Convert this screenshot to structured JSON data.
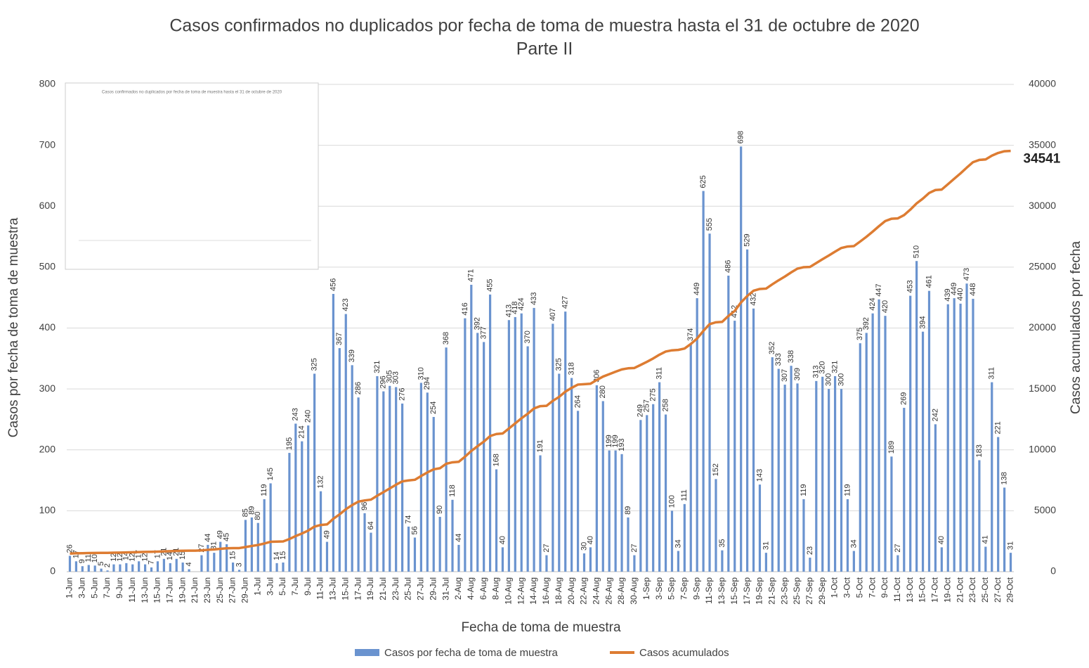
{
  "chart_data": {
    "type": "bar_line",
    "title": "Casos confirmados no duplicados por fecha de toma de muestra hasta el 31 de octubre de 2020",
    "subtitle": "Parte II",
    "x_label": "Fecha de toma de muestra",
    "y_label": "Casos por fecha de toma de muestra",
    "y2_label": "Casos acumulados por fecha",
    "inset_title": "Casos confirmados no duplicados por fecha de toma de muestra hasta el 31 de octubre de 2020",
    "categories": [
      "1-Jun",
      null,
      "3-Jun",
      null,
      "5-Jun",
      null,
      "7-Jun",
      null,
      "9-Jun",
      null,
      "11-Jun",
      null,
      "13-Jun",
      null,
      "15-Jun",
      null,
      "17-Jun",
      null,
      "19-Jun",
      null,
      "21-Jun",
      null,
      "23-Jun",
      null,
      "25-Jun",
      null,
      "27-Jun",
      null,
      "29-Jun",
      null,
      "1-Jul",
      null,
      "3-Jul",
      null,
      "5-Jul",
      null,
      "7-Jul",
      null,
      "9-Jul",
      null,
      "11-Jul",
      null,
      "13-Jul",
      null,
      "15-Jul",
      null,
      "17-Jul",
      null,
      "19-Jul",
      null,
      "21-Jul",
      null,
      "23-Jul",
      null,
      "25-Jul",
      null,
      "27-Jul",
      null,
      "29-Jul",
      null,
      "31-Jul",
      null,
      "2-Aug",
      null,
      "4-Aug",
      null,
      "6-Aug",
      null,
      "8-Aug",
      null,
      "10-Aug",
      null,
      "12-Aug",
      null,
      "14-Aug",
      null,
      "16-Aug",
      null,
      "18-Aug",
      null,
      "20-Aug",
      null,
      "22-Aug",
      null,
      "24-Aug",
      null,
      "26-Aug",
      null,
      "28-Aug",
      null,
      "30-Aug",
      null,
      "1-Sep",
      null,
      "3-Sep",
      null,
      "5-Sep",
      null,
      "7-Sep",
      null,
      "9-Sep",
      null,
      "11-Sep",
      null,
      "13-Sep",
      null,
      "15-Sep",
      null,
      "17-Sep",
      null,
      "19-Sep",
      null,
      "21-Sep",
      null,
      "23-Sep",
      null,
      "25-Sep",
      null,
      "27-Sep",
      null,
      "29-Sep",
      null,
      "1-Oct",
      null,
      "3-Oct",
      null,
      "5-Oct",
      null,
      "7-Oct",
      null,
      "9-Oct",
      null,
      "11-Oct",
      null,
      "13-Oct",
      null,
      "15-Oct",
      null,
      "17-Oct",
      null,
      "19-Oct",
      null,
      "21-Oct",
      null,
      "23-Oct",
      null,
      "25-Oct",
      null,
      "27-Oct",
      null,
      "29-Oct"
    ],
    "series": [
      {
        "name": "Casos por fecha de toma de muestra",
        "color": "#6a93cf",
        "values": [
          26,
          17,
          9,
          11,
          10,
          5,
          2,
          12,
          12,
          14,
          12,
          17,
          12,
          7,
          17,
          21,
          14,
          21,
          15,
          4,
          null,
          27,
          44,
          31,
          49,
          45,
          15,
          3,
          85,
          89,
          80,
          119,
          145,
          14,
          15,
          195,
          243,
          214,
          240,
          325,
          132,
          49,
          456,
          367,
          423,
          339,
          286,
          96,
          64,
          321,
          296,
          305,
          303,
          276,
          74,
          56,
          310,
          294,
          254,
          90,
          368,
          118,
          44,
          416,
          471,
          392,
          377,
          455,
          168,
          40,
          413,
          418,
          424,
          370,
          433,
          191,
          27,
          407,
          325,
          427,
          318,
          264,
          30,
          40,
          306,
          280,
          199,
          199,
          193,
          89,
          27,
          249,
          257,
          275,
          311,
          258,
          100,
          34,
          111,
          374,
          449,
          625,
          555,
          152,
          35,
          486,
          412,
          698,
          529,
          432,
          143,
          31,
          352,
          333,
          307,
          338,
          309,
          119,
          23,
          313,
          320,
          300,
          321,
          300,
          119,
          34,
          375,
          392,
          424,
          447,
          420,
          189,
          27,
          269,
          453,
          510,
          394,
          461,
          242,
          40,
          439,
          449,
          440,
          473,
          448,
          183,
          41,
          311,
          221,
          138,
          31
        ]
      },
      {
        "name": "Casos acumulados",
        "color": "#dd7c32",
        "axis": "y2",
        "values": [
          1490,
          1507,
          1516,
          1527,
          1537,
          1542,
          1544,
          1556,
          1568,
          1582,
          1594,
          1611,
          1623,
          1630,
          1647,
          1668,
          1682,
          1703,
          1718,
          1722,
          1722,
          1749,
          1793,
          1824,
          1873,
          1918,
          1933,
          1936,
          2021,
          2110,
          2190,
          2309,
          2454,
          2468,
          2483,
          2678,
          2921,
          3135,
          3375,
          3700,
          3832,
          3881,
          4337,
          4704,
          5127,
          5466,
          5752,
          5848,
          5912,
          6233,
          6529,
          6834,
          7137,
          7413,
          7487,
          7543,
          7853,
          8147,
          8401,
          8491,
          8859,
          8977,
          9021,
          9437,
          9908,
          10300,
          10677,
          11132,
          11300,
          11340,
          11753,
          12171,
          12595,
          12965,
          13398,
          13589,
          13616,
          14023,
          14348,
          14775,
          15093,
          15357,
          15387,
          15427,
          15733,
          16013,
          16212,
          16411,
          16604,
          16693,
          16720,
          16969,
          17226,
          17501,
          17812,
          18070,
          18170,
          18204,
          18315,
          18689,
          19138,
          19763,
          20318,
          20470,
          20505,
          20991,
          21403,
          22101,
          22630,
          23062,
          23205,
          23236,
          23588,
          23921,
          24228,
          24566,
          24875,
          24994,
          25017,
          25330,
          25650,
          25950,
          26271,
          26571,
          26690,
          26724,
          27099,
          27491,
          27915,
          28362,
          28782,
          28971,
          28998,
          29267,
          29720,
          30230,
          30624,
          31085,
          31327,
          31367,
          31806,
          32255,
          32695,
          33168,
          33616,
          33799,
          33840,
          34151,
          34372,
          34510,
          34541
        ]
      }
    ],
    "ylim": [
      0,
      800
    ],
    "yticks": [
      0,
      100,
      200,
      300,
      400,
      500,
      600,
      700,
      800
    ],
    "y2lim": [
      0,
      40000
    ],
    "y2ticks": [
      0,
      5000,
      10000,
      15000,
      20000,
      25000,
      30000,
      35000,
      40000
    ],
    "grid": true,
    "legend": "bottom"
  }
}
